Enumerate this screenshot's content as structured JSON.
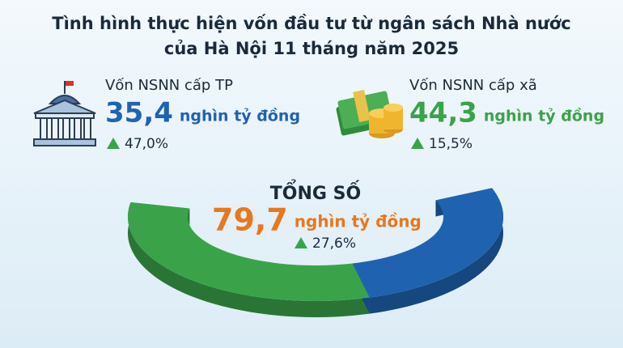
{
  "chart_data": {
    "type": "half-donut",
    "title": [
      "Tình hình thực hiện vốn đầu tư từ ngân sách Nhà nước",
      "của Hà Nội 11 tháng năm 2025"
    ],
    "unit": "nghìn tỷ đồng",
    "categories": [
      "Vốn NSNN cấp TP",
      "Vốn NSNN cấp xã"
    ],
    "values": [
      35.4,
      44.3
    ],
    "value_labels": [
      "35,4",
      "44,3"
    ],
    "colors": [
      "#1f63b0",
      "#3aa34a"
    ],
    "growth": [
      47.0,
      15.5
    ],
    "growth_labels": [
      "47,0%",
      "15,5%"
    ],
    "total": {
      "label": "TỔNG SỐ",
      "value": 79.7,
      "value_label": "79,7",
      "color": "#e8781e",
      "growth": 27.6,
      "growth_label": "27,6%"
    }
  }
}
